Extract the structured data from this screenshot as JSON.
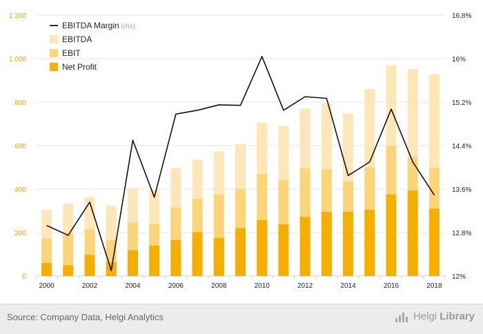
{
  "chart_data": {
    "type": "bar",
    "categories": [
      "2000",
      "2001",
      "2002",
      "2003",
      "2004",
      "2005",
      "2006",
      "2007",
      "2008",
      "2009",
      "2010",
      "2011",
      "2012",
      "2013",
      "2014",
      "2015",
      "2016",
      "2017",
      "2018"
    ],
    "x_tick_labels": [
      "2000",
      "2002",
      "2004",
      "2006",
      "2008",
      "2010",
      "2012",
      "2014",
      "2016",
      "2018"
    ],
    "ylim_left": [
      0,
      1200
    ],
    "yticks_left": [
      "0",
      "200",
      "400",
      "600",
      "800",
      "1 000",
      "1 200"
    ],
    "ylim_right": [
      12,
      16.8
    ],
    "yticks_right": [
      "12%",
      "12.8%",
      "13.6%",
      "14.4%",
      "15.2%",
      "16%",
      "16.8%"
    ],
    "grid": true,
    "legend_position": "top-left",
    "series": [
      {
        "name": "EBITDA",
        "kind": "bar",
        "color": "#fde7b9",
        "values": [
          305,
          333,
          363,
          323,
          405,
          395,
          495,
          535,
          573,
          607,
          705,
          690,
          770,
          792,
          748,
          860,
          970,
          952,
          928
        ]
      },
      {
        "name": "EBIT",
        "kind": "bar",
        "color": "#fcd47a",
        "values": [
          172,
          195,
          215,
          165,
          245,
          238,
          315,
          355,
          375,
          400,
          470,
          440,
          495,
          490,
          435,
          500,
          598,
          548,
          498
        ]
      },
      {
        "name": "Net Profit",
        "kind": "bar",
        "color": "#f6ae00",
        "values": [
          60,
          50,
          97,
          62,
          118,
          140,
          165,
          202,
          175,
          220,
          257,
          238,
          272,
          295,
          295,
          305,
          375,
          393,
          310
        ]
      },
      {
        "name": "EBITDA Margin",
        "suffix": "(rhs)",
        "kind": "line",
        "axis": "right",
        "color": "#111111",
        "values": [
          12.93,
          12.75,
          13.36,
          12.1,
          14.5,
          13.45,
          14.98,
          15.05,
          15.15,
          15.14,
          16.04,
          15.05,
          15.3,
          15.27,
          13.85,
          14.1,
          15.07,
          14.1,
          13.49
        ]
      }
    ]
  },
  "footer": {
    "source": "Source: Company Data, Helgi Analytics",
    "brand_light": "Helgi",
    "brand_bold": "Library"
  },
  "colors": {
    "left_axis": "#e0a800",
    "grid": "#e6e6e6",
    "footer_bg": "#ececec"
  }
}
